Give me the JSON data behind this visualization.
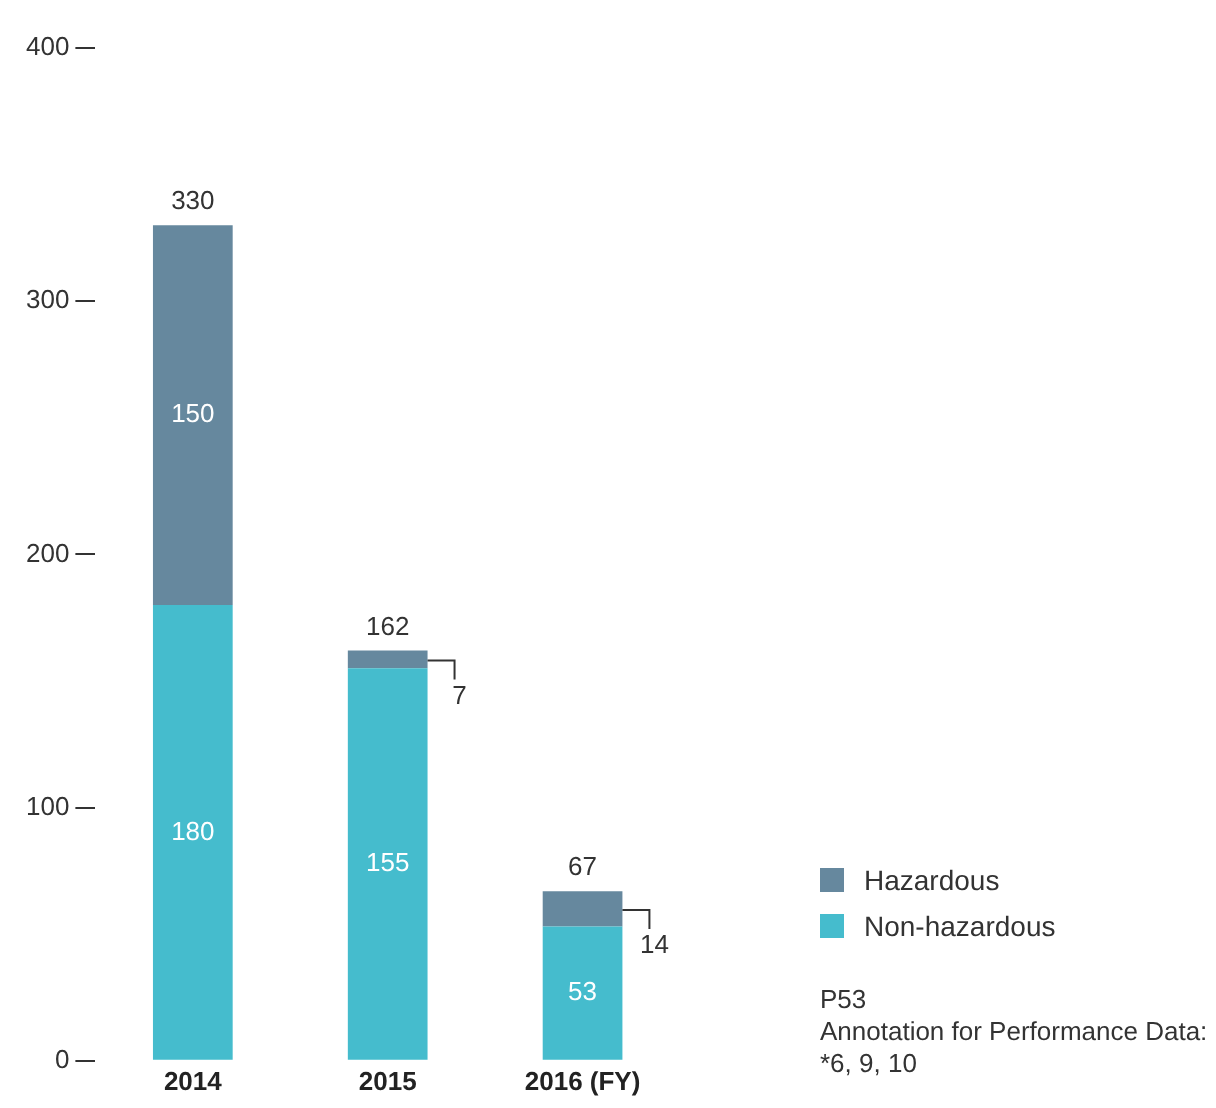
{
  "chart_data": {
    "type": "bar",
    "stacked": true,
    "categories": [
      "2014",
      "2015",
      "2016 (FY)"
    ],
    "series": [
      {
        "name": "Non-hazardous",
        "color": "#45bccd",
        "values": [
          180,
          155,
          53
        ]
      },
      {
        "name": "Hazardous",
        "color": "#66889e",
        "values": [
          150,
          7,
          14
        ]
      }
    ],
    "totals": [
      "330",
      "162",
      "67"
    ],
    "data_labels": true,
    "ylim": [
      0,
      400
    ],
    "yticks": [
      0,
      100,
      200,
      300,
      400
    ],
    "grid": false,
    "legend": "bottom right",
    "annotations": [
      "P53",
      "Annotation for Performance Data: *6, 9, 10"
    ]
  }
}
